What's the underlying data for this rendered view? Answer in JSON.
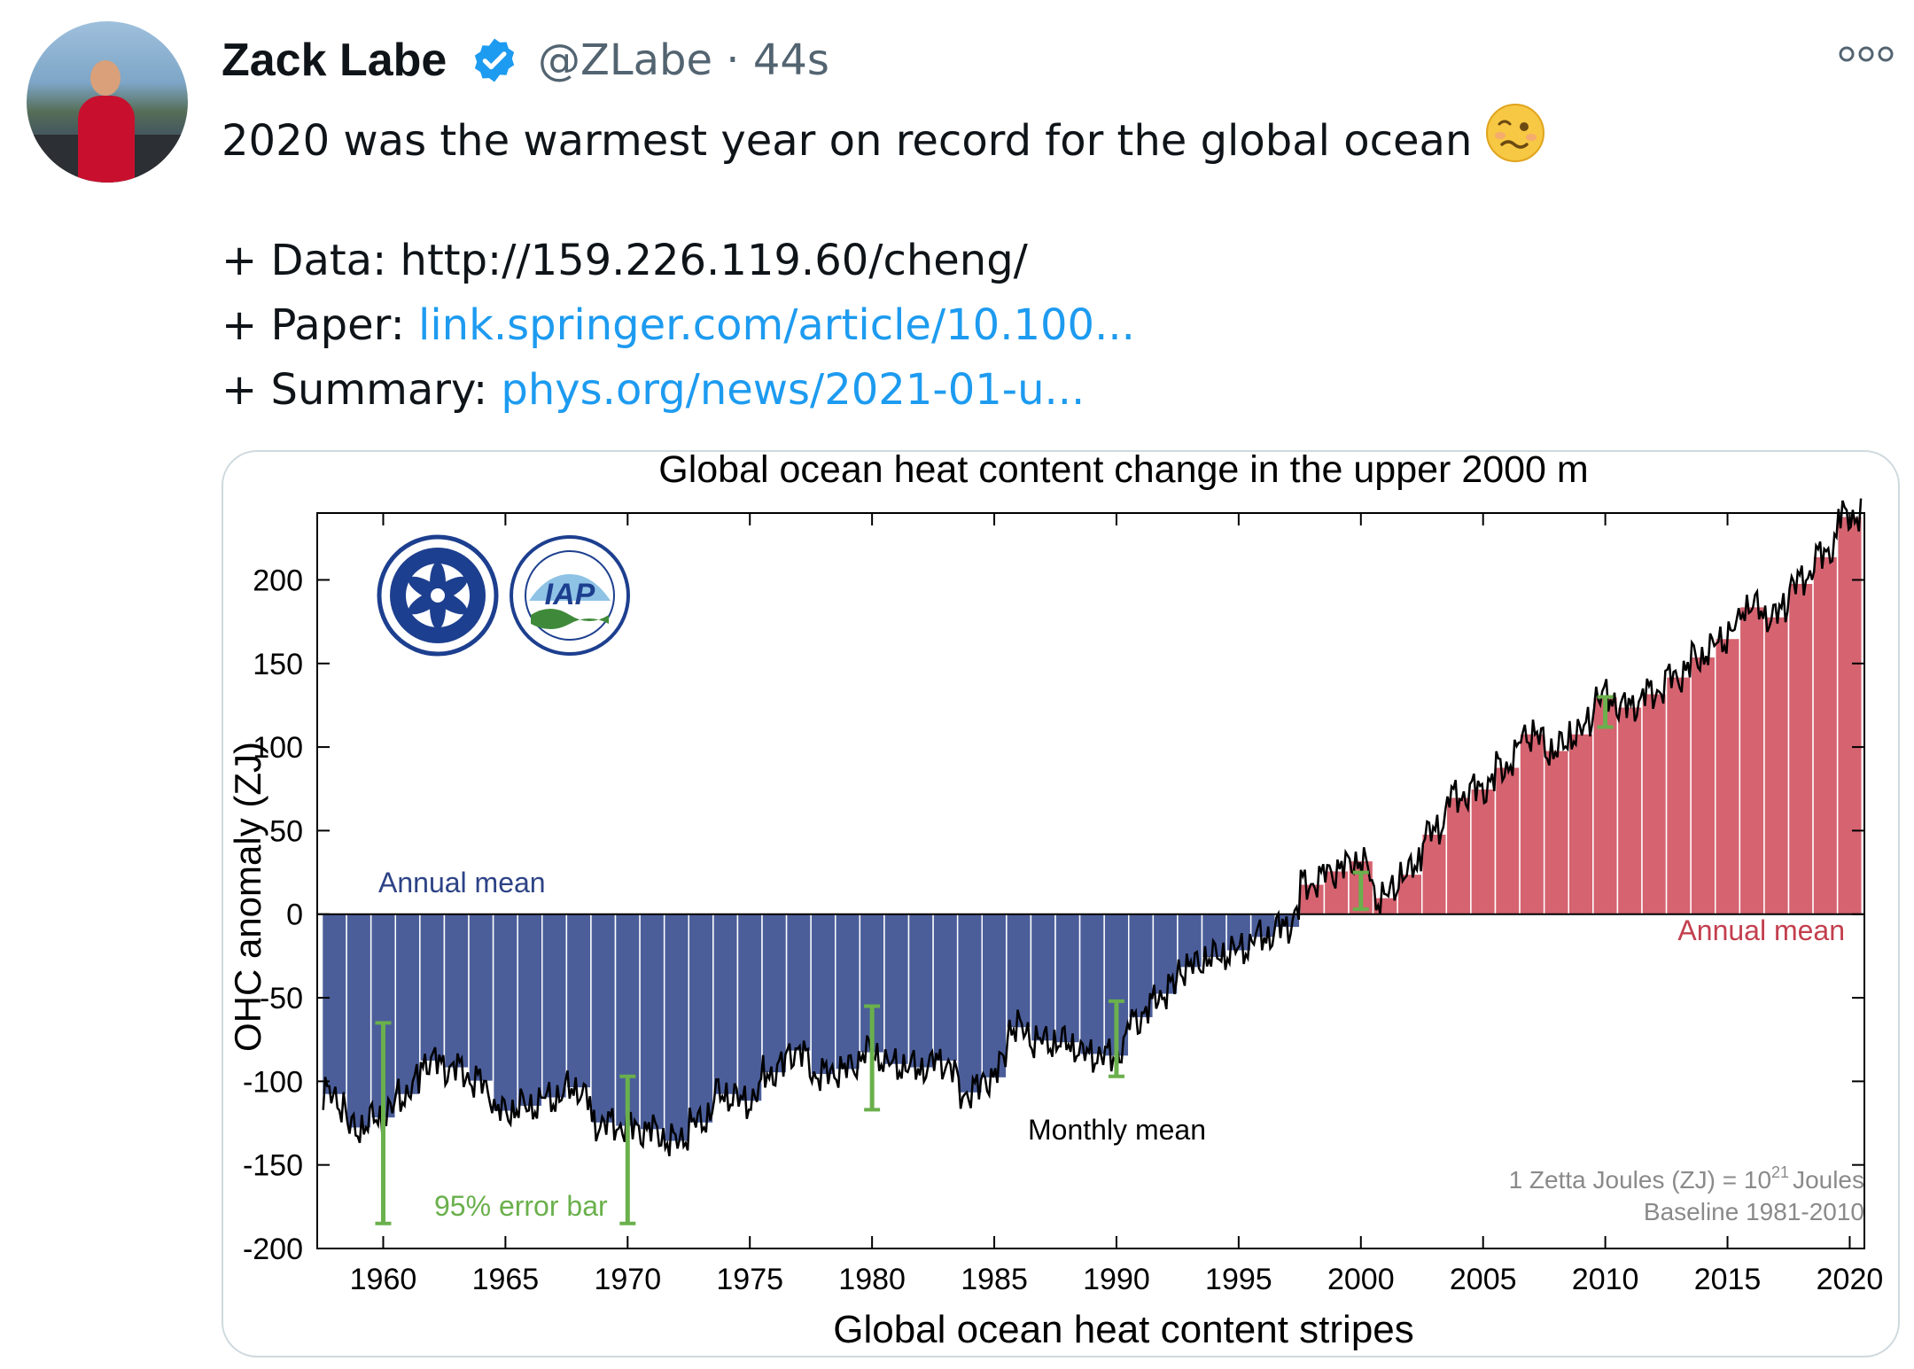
{
  "tweet": {
    "author_name": "Zack Labe",
    "handle": "@ZLabe · 44s",
    "text": "2020 was the warmest year on record for the global ocean",
    "data_prefix": "+ Data: ",
    "data_link": "http://159.226.119.60/cheng/",
    "paper_prefix": "+ Paper: ",
    "paper_link": "link.springer.com/article/10.100...",
    "summary_prefix": "+ Summary: ",
    "summary_link": "phys.org/news/2021-01-u...",
    "emoji": "woozy-face",
    "link_color": "#1d9bf0",
    "verified_color": "#1d9bf0"
  },
  "chart_data": {
    "type": "bar",
    "title": "Global ocean heat content change in the upper 2000 m",
    "xlabel": "Global ocean heat content stripes",
    "ylabel": "OHC anomaly (ZJ)",
    "ylim": [
      -200,
      240
    ],
    "xlim": [
      1957.3,
      2020.6
    ],
    "yticks": [
      200,
      150,
      100,
      50,
      0,
      -50,
      -100,
      -150,
      -200
    ],
    "xticks": [
      1960,
      1965,
      1970,
      1975,
      1980,
      1985,
      1990,
      1995,
      2000,
      2005,
      2010,
      2015,
      2020
    ],
    "grid": false,
    "colors": {
      "negative": "#4b5e9a",
      "positive": "#d56370",
      "error_bar": "#6ab04c",
      "monthly": "#000000"
    },
    "annotations": {
      "annual_mean_neg": "Annual mean",
      "annual_mean_pos": "Annual mean",
      "monthly_mean": "Monthly mean",
      "error_bar": "95% error bar",
      "units_note": "1 Zetta Joules (ZJ) = 10",
      "units_exp": "21",
      "units_tail": "Joules",
      "baseline": "Baseline 1981-2010"
    },
    "logos": [
      "Chinese Academy of Sciences",
      "IAP CAS"
    ],
    "years": [
      1958,
      1959,
      1960,
      1961,
      1962,
      1963,
      1964,
      1965,
      1966,
      1967,
      1968,
      1969,
      1970,
      1971,
      1972,
      1973,
      1974,
      1975,
      1976,
      1977,
      1978,
      1979,
      1980,
      1981,
      1982,
      1983,
      1984,
      1985,
      1986,
      1987,
      1988,
      1989,
      1990,
      1991,
      1992,
      1993,
      1994,
      1995,
      1996,
      1997,
      1998,
      1999,
      2000,
      2001,
      2002,
      2003,
      2004,
      2005,
      2006,
      2007,
      2008,
      2009,
      2010,
      2011,
      2012,
      2013,
      2014,
      2015,
      2016,
      2017,
      2018,
      2019,
      2020
    ],
    "values": [
      -108,
      -128,
      -122,
      -108,
      -88,
      -92,
      -100,
      -118,
      -115,
      -110,
      -104,
      -125,
      -127,
      -129,
      -136,
      -125,
      -108,
      -112,
      -95,
      -82,
      -96,
      -93,
      -83,
      -90,
      -92,
      -88,
      -107,
      -98,
      -68,
      -76,
      -77,
      -84,
      -85,
      -62,
      -48,
      -32,
      -26,
      -22,
      -14,
      -8,
      18,
      26,
      32,
      10,
      24,
      48,
      70,
      75,
      88,
      108,
      98,
      108,
      130,
      124,
      132,
      142,
      154,
      165,
      184,
      178,
      198,
      214,
      238
    ],
    "error_bars": [
      {
        "year": 1960,
        "low": -185,
        "high": -65
      },
      {
        "year": 1970,
        "low": -185,
        "high": -97
      },
      {
        "year": 1980,
        "low": -117,
        "high": -55
      },
      {
        "year": 1990,
        "low": -97,
        "high": -52
      },
      {
        "year": 2000,
        "low": 3,
        "high": 25
      },
      {
        "year": 2010,
        "low": 112,
        "high": 130
      }
    ]
  }
}
